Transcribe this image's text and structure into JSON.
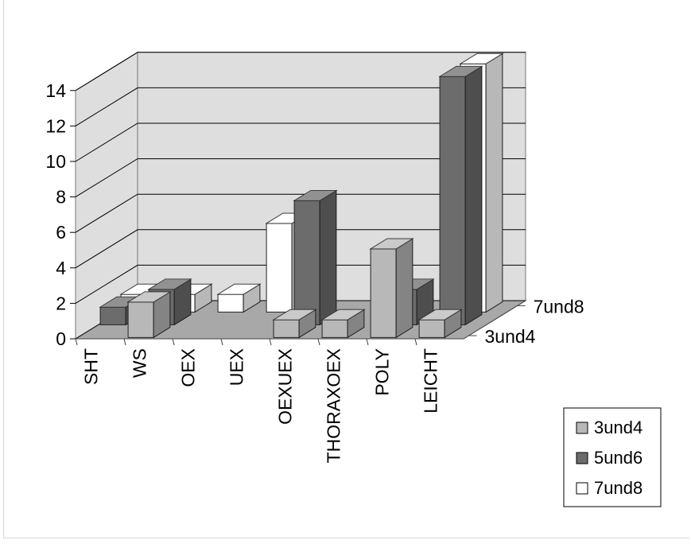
{
  "chart_data": {
    "type": "bar",
    "subtype": "3d-clustered-depth",
    "categories": [
      "SHT",
      "WS",
      "OEX",
      "UEX",
      "OEXUEX",
      "THORAXOEX",
      "POLY",
      "LEICHT"
    ],
    "series": [
      {
        "name": "3und4",
        "values": [
          0,
          2,
          0,
          0,
          1,
          1,
          5,
          1
        ]
      },
      {
        "name": "5und6",
        "values": [
          1,
          2,
          0,
          0,
          7,
          0,
          2,
          14
        ]
      },
      {
        "name": "7und8",
        "values": [
          1,
          1,
          1,
          5,
          0,
          0,
          0,
          14
        ]
      }
    ],
    "depth_labels": [
      "3und4",
      "7und8"
    ],
    "ylim": [
      0,
      14
    ],
    "yticks": [
      0,
      2,
      4,
      6,
      8,
      10,
      12,
      14
    ],
    "grid": true,
    "legend": "bottom-right",
    "colors": {
      "3und4": "#b8b8b8",
      "5und6": "#6c6c6c",
      "7und8": "#ffffff",
      "wall": "#dedede",
      "floor": "#a8a8a8",
      "grid": "#000000"
    }
  }
}
